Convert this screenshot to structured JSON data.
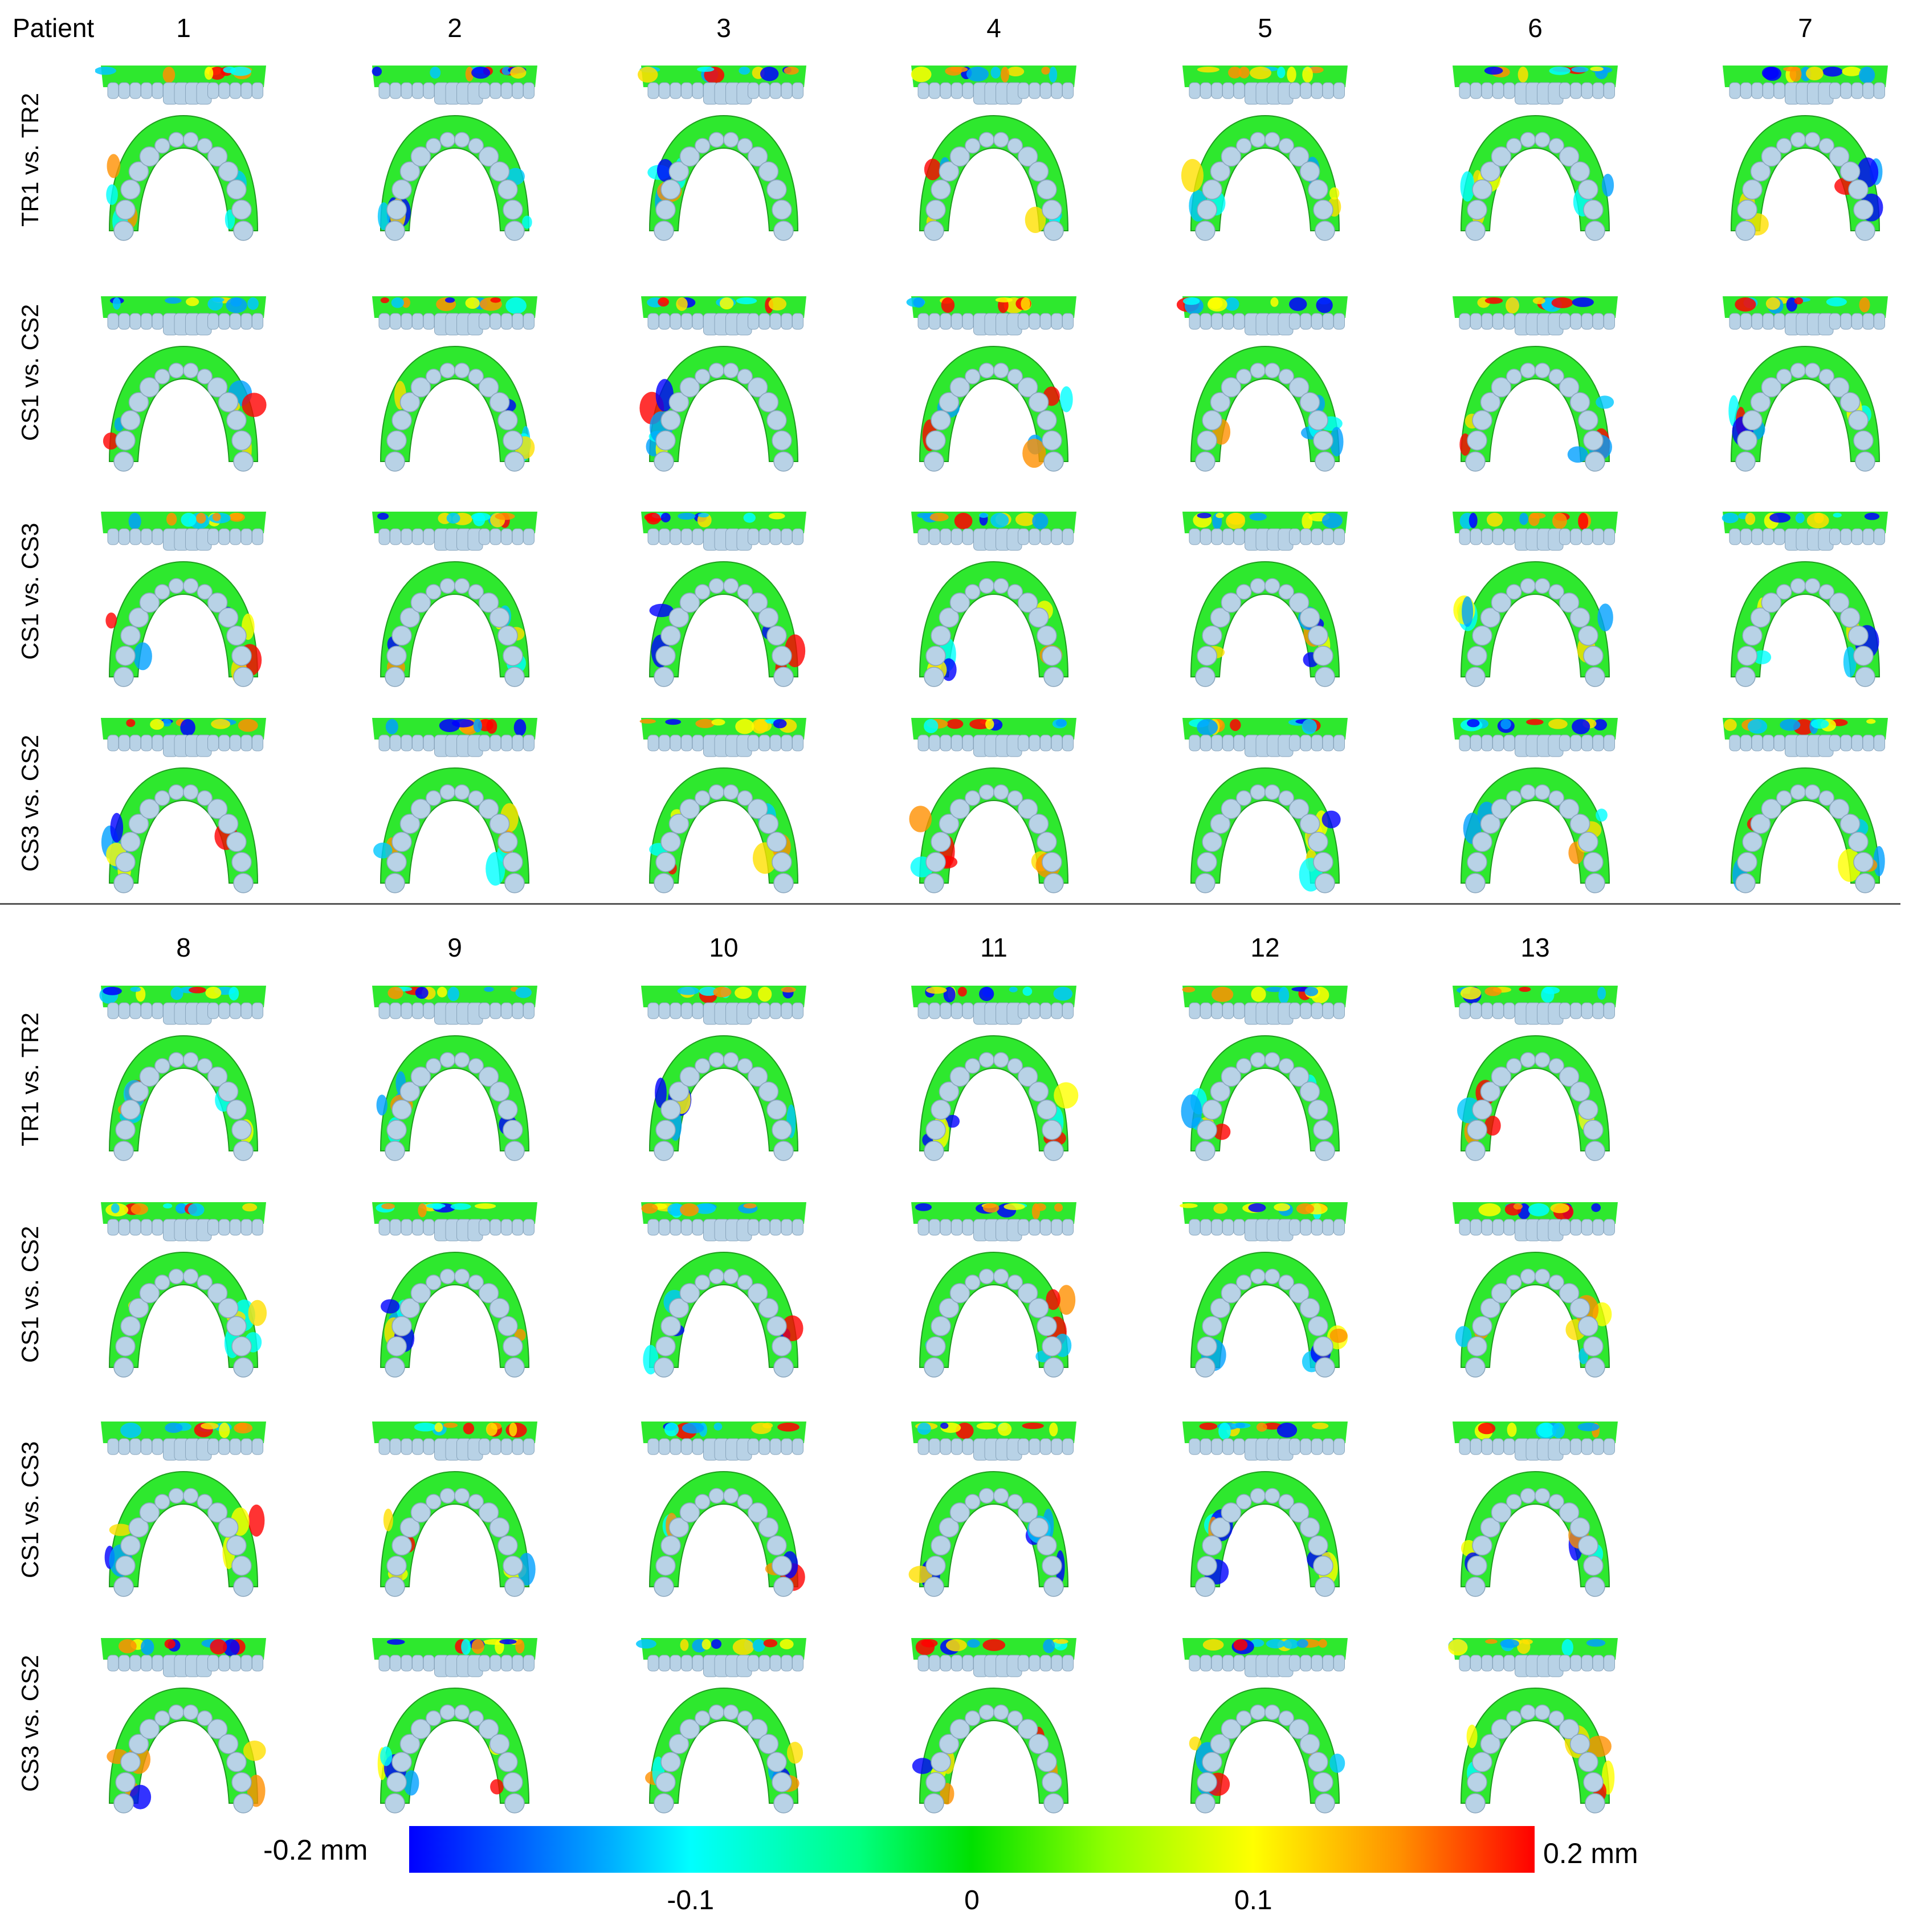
{
  "header": {
    "patient_label": "Patient"
  },
  "patients_top": [
    "1",
    "2",
    "3",
    "4",
    "5",
    "6",
    "7"
  ],
  "patients_bottom": [
    "8",
    "9",
    "10",
    "11",
    "12",
    "13"
  ],
  "row_labels": [
    "TR1 vs. TR2",
    "CS1 vs. CS2",
    "CS1 vs. CS3",
    "CS3 vs. CS2"
  ],
  "colorbar": {
    "min_label": "-0.2 mm",
    "max_label": "0.2 mm",
    "ticks": [
      "-0.1",
      "0",
      "0.1"
    ],
    "tick_values": [
      -0.1,
      0,
      0.1
    ],
    "range": [
      -0.2,
      0.2
    ],
    "colors": [
      "#0000ff",
      "#00ffff",
      "#00e000",
      "#ffff00",
      "#ff0000"
    ]
  },
  "colors": {
    "tooth": "#b8d2e6",
    "deviation_zero": "#2ee82e",
    "deviation_positive": "#ff2020",
    "deviation_negative": "#1a2cff"
  }
}
